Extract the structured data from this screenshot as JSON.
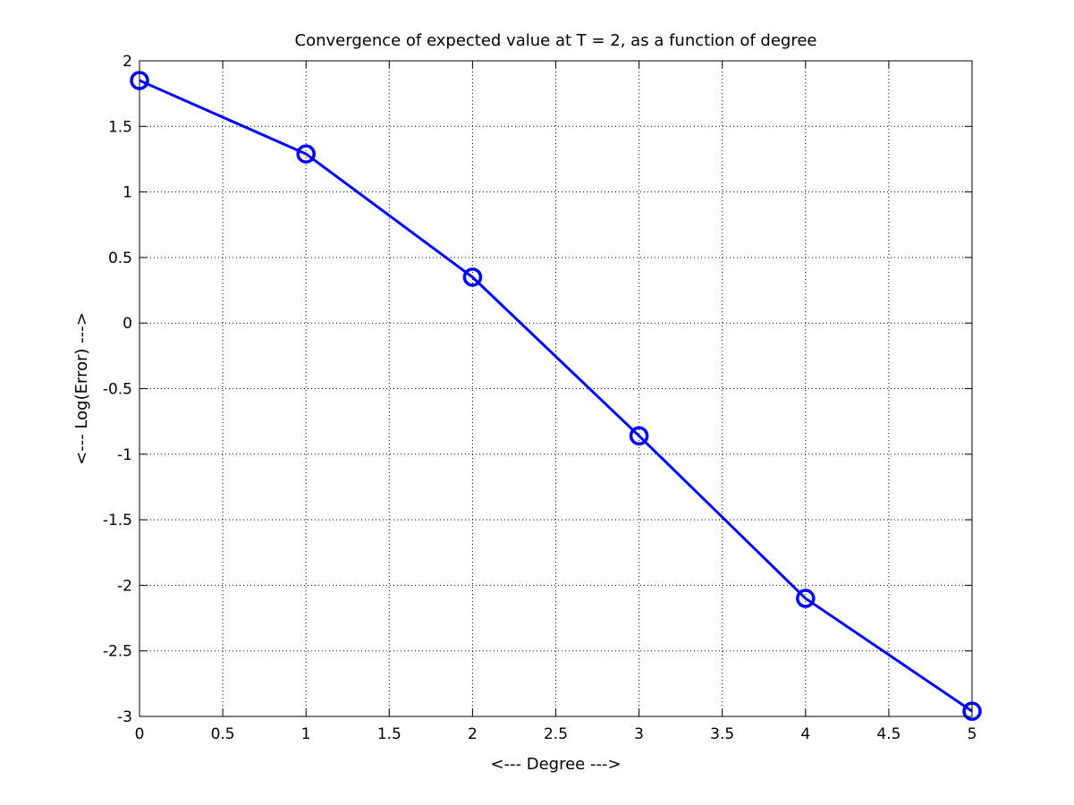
{
  "chart_data": {
    "type": "line",
    "title": "Convergence of expected value at T = 2, as a function of degree",
    "xlabel": "<--- Degree --->",
    "ylabel": "<--- Log(Error) --->",
    "xlim": [
      0,
      5
    ],
    "ylim": [
      -3,
      2
    ],
    "xticks": [
      0,
      0.5,
      1,
      1.5,
      2,
      2.5,
      3,
      3.5,
      4,
      4.5,
      5
    ],
    "yticks": [
      -3,
      -2.5,
      -2,
      -1.5,
      -1,
      -0.5,
      0,
      0.5,
      1,
      1.5,
      2
    ],
    "grid": true,
    "grid_style": "dotted",
    "legend": "none",
    "series": [
      {
        "x": [
          0,
          1,
          2,
          3,
          4,
          5
        ],
        "y": [
          1.85,
          1.29,
          0.35,
          -0.86,
          -2.1,
          -2.96
        ],
        "color": "#0000ff",
        "marker": "circle"
      }
    ]
  }
}
